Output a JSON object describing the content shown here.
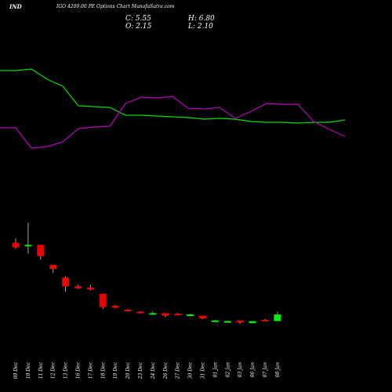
{
  "header": {
    "symbol": "IND",
    "caption": "IGO 4200.00  PE Options  Chart MunafaSutra.com",
    "close": "C: 5.55",
    "open": "O: 2.15",
    "high": "H: 6.80",
    "low": "L: 2.10"
  },
  "chart_data": {
    "type": "candlestick",
    "title": "IGO 4200.00  PE Options  Chart MunafaSutra.com",
    "grid": false,
    "colors": {
      "background": "#000000",
      "up": "#00ee00",
      "down": "#ee0000",
      "line_a": "#00dd00",
      "line_b": "#bb00bb",
      "text": "#ffffff"
    },
    "categories": [
      "09 Dec",
      "10 Dec",
      "11 Dec",
      "12 Dec",
      "13 Dec",
      "16 Dec",
      "17 Dec",
      "18 Dec",
      "19 Dec",
      "20 Dec",
      "23 Dec",
      "24 Dec",
      "26 Dec",
      "27 Dec",
      "30 Dec",
      "31 Dec",
      "01 Jan",
      "02 Jan",
      "03 Jan",
      "06 Jan",
      "07 Jan",
      "08 Jan"
    ],
    "candles": [
      {
        "o": 88.0,
        "h": 91.5,
        "l": 83.5,
        "c": 84.5
      },
      {
        "o": 86.0,
        "h": 103.0,
        "l": 80.0,
        "c": 86.5
      },
      {
        "o": 86.5,
        "h": 86.5,
        "l": 75.5,
        "c": 78.0
      },
      {
        "o": 71.5,
        "h": 71.5,
        "l": 65.5,
        "c": 68.5
      },
      {
        "o": 62.0,
        "h": 63.0,
        "l": 51.5,
        "c": 55.5
      },
      {
        "o": 55.5,
        "h": 56.5,
        "l": 53.5,
        "c": 54.0
      },
      {
        "o": 54.5,
        "h": 56.5,
        "l": 52.5,
        "c": 53.0
      },
      {
        "o": 50.0,
        "h": 50.0,
        "l": 38.5,
        "c": 40.0
      },
      {
        "o": 41.0,
        "h": 41.5,
        "l": 39.0,
        "c": 39.5
      },
      {
        "o": 38.0,
        "h": 38.5,
        "l": 36.5,
        "c": 37.0
      },
      {
        "o": 36.5,
        "h": 37.0,
        "l": 35.5,
        "c": 36.0
      },
      {
        "o": 35.0,
        "h": 36.5,
        "l": 34.0,
        "c": 35.5
      },
      {
        "o": 35.5,
        "h": 35.5,
        "l": 32.5,
        "c": 33.5
      },
      {
        "o": 35.0,
        "h": 35.5,
        "l": 34.0,
        "c": 34.5
      },
      {
        "o": 34.0,
        "h": 35.0,
        "l": 33.5,
        "c": 34.5
      },
      {
        "o": 33.5,
        "h": 33.5,
        "l": 31.0,
        "c": 31.5
      },
      {
        "o": 30.0,
        "h": 30.5,
        "l": 29.5,
        "c": 30.0
      },
      {
        "o": 28.5,
        "h": 30.0,
        "l": 28.5,
        "c": 29.5
      },
      {
        "o": 30.0,
        "h": 30.0,
        "l": 27.5,
        "c": 28.5
      },
      {
        "o": 28.0,
        "h": 29.5,
        "l": 28.0,
        "c": 29.5
      },
      {
        "o": 30.5,
        "h": 31.0,
        "l": 30.0,
        "c": 30.0
      },
      {
        "o": 29.5,
        "h": 36.5,
        "l": 29.5,
        "c": 34.5
      }
    ],
    "candle_ylim": [
      0,
      120
    ],
    "line_series": [
      {
        "points": [
          [
            0,
            165
          ],
          [
            20,
            165
          ],
          [
            40,
            167
          ],
          [
            60,
            154
          ],
          [
            80,
            145
          ],
          [
            100,
            120
          ],
          [
            120,
            119
          ],
          [
            140,
            118
          ],
          [
            160,
            108
          ],
          [
            180,
            108
          ],
          [
            200,
            107
          ],
          [
            220,
            106
          ],
          [
            240,
            105
          ],
          [
            260,
            103
          ],
          [
            280,
            104
          ],
          [
            300,
            103
          ],
          [
            320,
            100
          ],
          [
            340,
            99
          ],
          [
            360,
            99
          ],
          [
            380,
            98
          ],
          [
            400,
            99
          ],
          [
            420,
            99
          ],
          [
            440,
            102
          ]
        ]
      },
      {
        "points": [
          [
            0,
            92
          ],
          [
            20,
            92
          ],
          [
            40,
            66
          ],
          [
            60,
            68
          ],
          [
            80,
            74
          ],
          [
            100,
            91
          ],
          [
            120,
            93
          ],
          [
            140,
            94
          ],
          [
            160,
            123
          ],
          [
            180,
            131
          ],
          [
            200,
            130
          ],
          [
            220,
            132
          ],
          [
            240,
            117
          ],
          [
            260,
            116
          ],
          [
            280,
            118
          ],
          [
            300,
            104
          ],
          [
            320,
            113
          ],
          [
            340,
            123
          ],
          [
            360,
            122
          ],
          [
            380,
            122
          ],
          [
            400,
            100
          ],
          [
            420,
            90
          ],
          [
            440,
            81
          ]
        ]
      }
    ],
    "line_ylim": [
      0,
      200
    ]
  }
}
